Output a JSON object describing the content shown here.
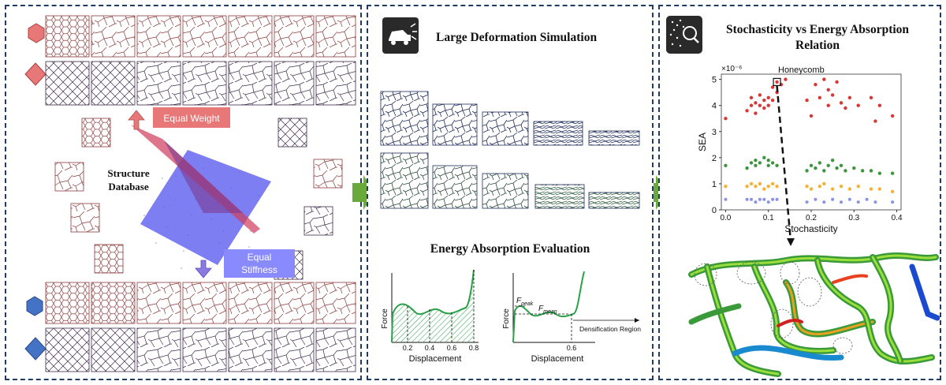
{
  "panel1": {
    "structure_db_label_line1": "Structure",
    "structure_db_label_line2": "Database",
    "equal_weight": "Equal Weight",
    "equal_stiffness_line1": "Equal",
    "equal_stiffness_line2": "Stiffness",
    "colors": {
      "red": "#e87777",
      "blue": "#4472c4",
      "lattice": "#8b3a3a"
    }
  },
  "panel2": {
    "title": "Large Deformation Simulation",
    "eval_title": "Energy Absorption Evaluation",
    "chart1": {
      "ylabel": "Force",
      "xlabel": "Displacement",
      "ticks": [
        "0.2",
        "0.4",
        "0.6",
        "0.8"
      ]
    },
    "chart2": {
      "ylabel": "Force",
      "xlabel": "Displacement",
      "f_peak": "F",
      "f_peak_sub": "peak",
      "f_mean": "F",
      "f_mean_sub": "mean",
      "densification": "Densification Region",
      "tick": "0.6"
    }
  },
  "panel3": {
    "title_line1": "Stochasticity vs Energy Absorption",
    "title_line2": "Relation",
    "chart_data": {
      "type": "scatter",
      "xlabel": "Stochasticity",
      "ylabel": "SEA",
      "multiplier": "×10⁻⁶",
      "annotation": "Honeycomb",
      "xlim": [
        -0.01,
        0.41
      ],
      "ylim": [
        0,
        5.2
      ],
      "xticks": [
        "0.0",
        "0.1",
        "0.2",
        "0.3",
        "0.4"
      ],
      "yticks": [
        "0",
        "1",
        "2",
        "3",
        "4",
        "5"
      ],
      "series": [
        {
          "color": "#d62020",
          "points": [
            [
              0.0,
              3.5
            ],
            [
              0.05,
              3.8
            ],
            [
              0.06,
              4.0
            ],
            [
              0.06,
              4.3
            ],
            [
              0.07,
              3.7
            ],
            [
              0.07,
              4.1
            ],
            [
              0.08,
              4.0
            ],
            [
              0.08,
              4.4
            ],
            [
              0.09,
              4.2
            ],
            [
              0.09,
              3.9
            ],
            [
              0.1,
              4.3
            ],
            [
              0.1,
              4.0
            ],
            [
              0.11,
              4.2
            ],
            [
              0.11,
              4.7
            ],
            [
              0.12,
              4.5
            ],
            [
              0.12,
              4.9
            ],
            [
              0.13,
              4.8
            ],
            [
              0.14,
              5.0
            ],
            [
              0.19,
              4.2
            ],
            [
              0.2,
              3.6
            ],
            [
              0.21,
              4.8
            ],
            [
              0.22,
              4.3
            ],
            [
              0.23,
              5.0
            ],
            [
              0.24,
              4.6
            ],
            [
              0.24,
              4.0
            ],
            [
              0.25,
              4.4
            ],
            [
              0.26,
              4.9
            ],
            [
              0.27,
              4.1
            ],
            [
              0.28,
              3.9
            ],
            [
              0.29,
              4.3
            ],
            [
              0.31,
              4.0
            ],
            [
              0.34,
              4.3
            ],
            [
              0.35,
              3.4
            ],
            [
              0.36,
              4.0
            ],
            [
              0.39,
              3.6
            ]
          ]
        },
        {
          "color": "#2a8a2a",
          "points": [
            [
              0.0,
              1.7
            ],
            [
              0.05,
              1.6
            ],
            [
              0.06,
              1.8
            ],
            [
              0.07,
              1.7
            ],
            [
              0.07,
              1.9
            ],
            [
              0.08,
              1.8
            ],
            [
              0.09,
              2.0
            ],
            [
              0.1,
              1.7
            ],
            [
              0.1,
              1.9
            ],
            [
              0.11,
              1.8
            ],
            [
              0.12,
              1.7
            ],
            [
              0.19,
              1.5
            ],
            [
              0.2,
              1.7
            ],
            [
              0.21,
              1.6
            ],
            [
              0.22,
              1.8
            ],
            [
              0.23,
              1.5
            ],
            [
              0.24,
              1.7
            ],
            [
              0.25,
              1.9
            ],
            [
              0.26,
              1.6
            ],
            [
              0.27,
              1.7
            ],
            [
              0.28,
              1.5
            ],
            [
              0.3,
              1.6
            ],
            [
              0.32,
              1.5
            ],
            [
              0.34,
              1.5
            ],
            [
              0.36,
              1.4
            ],
            [
              0.39,
              1.4
            ]
          ]
        },
        {
          "color": "#f2a922",
          "points": [
            [
              0.0,
              0.9
            ],
            [
              0.05,
              0.9
            ],
            [
              0.06,
              1.0
            ],
            [
              0.07,
              0.9
            ],
            [
              0.08,
              1.0
            ],
            [
              0.09,
              0.8
            ],
            [
              0.1,
              0.9
            ],
            [
              0.11,
              1.0
            ],
            [
              0.12,
              0.9
            ],
            [
              0.19,
              0.9
            ],
            [
              0.2,
              0.8
            ],
            [
              0.22,
              0.9
            ],
            [
              0.23,
              1.0
            ],
            [
              0.25,
              0.8
            ],
            [
              0.27,
              0.9
            ],
            [
              0.29,
              0.8
            ],
            [
              0.31,
              0.9
            ],
            [
              0.34,
              0.8
            ],
            [
              0.36,
              0.8
            ],
            [
              0.39,
              0.7
            ]
          ]
        },
        {
          "color": "#3a4ad4",
          "points": [
            [
              0.0,
              0.4
            ],
            [
              0.05,
              0.4
            ],
            [
              0.06,
              0.4
            ],
            [
              0.07,
              0.3
            ],
            [
              0.08,
              0.4
            ],
            [
              0.09,
              0.4
            ],
            [
              0.1,
              0.3
            ],
            [
              0.11,
              0.4
            ],
            [
              0.12,
              0.4
            ],
            [
              0.19,
              0.3
            ],
            [
              0.21,
              0.4
            ],
            [
              0.23,
              0.3
            ],
            [
              0.25,
              0.4
            ],
            [
              0.27,
              0.3
            ],
            [
              0.29,
              0.4
            ],
            [
              0.31,
              0.3
            ],
            [
              0.33,
              0.4
            ],
            [
              0.35,
              0.3
            ],
            [
              0.39,
              0.3
            ]
          ]
        }
      ]
    }
  }
}
